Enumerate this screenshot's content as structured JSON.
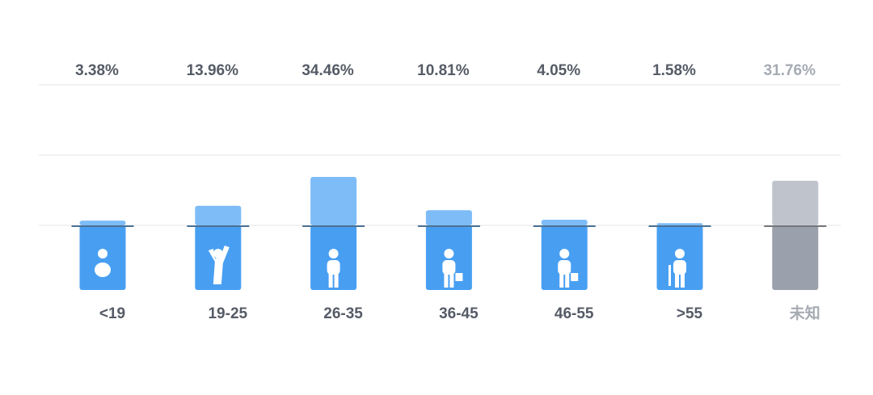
{
  "chart_data": {
    "type": "bar",
    "categories": [
      "<19",
      "19-25",
      "26-35",
      "36-45",
      "46-55",
      ">55",
      "未知"
    ],
    "values": [
      3.38,
      13.96,
      34.46,
      10.81,
      4.05,
      1.58,
      31.76
    ],
    "value_labels": [
      "3.38%",
      "13.96%",
      "34.46%",
      "10.81%",
      "4.05%",
      "1.58%",
      "31.76%"
    ],
    "colors": [
      "#7dbcf7",
      "#7dbcf7",
      "#7dbcf7",
      "#7dbcf7",
      "#7dbcf7",
      "#7dbcf7",
      "#bfc4cc"
    ],
    "label_colors": [
      "#555b66",
      "#555b66",
      "#555b66",
      "#555b66",
      "#555b66",
      "#555b66",
      "#a6abb3"
    ],
    "ylim": [
      0,
      100
    ]
  }
}
